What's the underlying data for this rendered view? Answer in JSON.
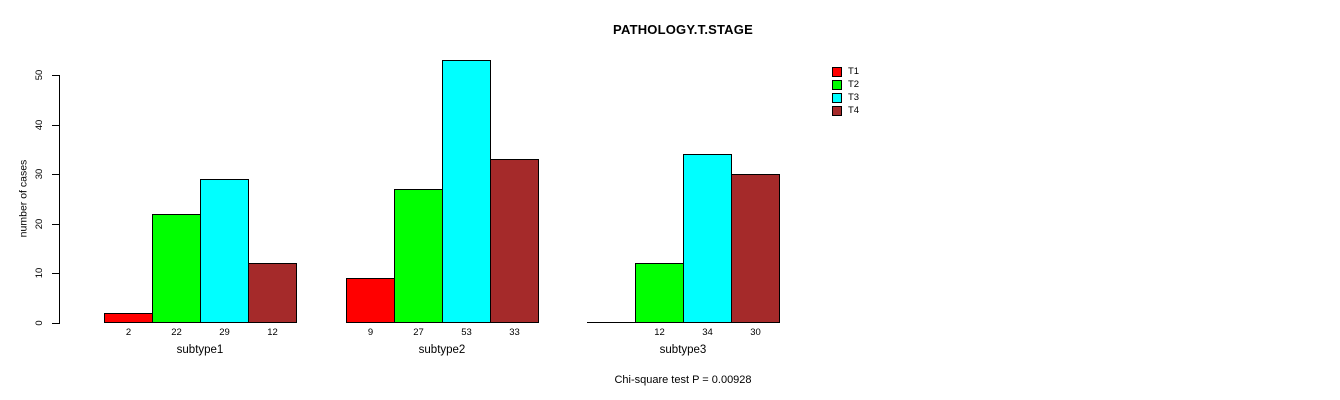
{
  "chart_data": {
    "type": "bar",
    "title": "PATHOLOGY.T.STAGE",
    "categories": [
      "subtype1",
      "subtype2",
      "subtype3"
    ],
    "series": [
      {
        "name": "T1",
        "color": "#FF0000",
        "values": [
          2,
          9,
          0
        ]
      },
      {
        "name": "T2",
        "color": "#00FF00",
        "values": [
          22,
          27,
          12
        ]
      },
      {
        "name": "T3",
        "color": "#00FFFF",
        "values": [
          29,
          53,
          34
        ]
      },
      {
        "name": "T4",
        "color": "#A52A2A",
        "values": [
          12,
          33,
          30
        ]
      }
    ],
    "bar_labels": [
      [
        "2",
        "22",
        "29",
        "12"
      ],
      [
        "9",
        "27",
        "53",
        "33"
      ],
      [
        "",
        "12",
        "34",
        "30"
      ]
    ],
    "xlabel": "",
    "ylabel": "number of cases",
    "ylim": [
      0,
      50
    ],
    "yticks": [
      0,
      10,
      20,
      30,
      40,
      50
    ],
    "grid": false,
    "legend_position": "right",
    "annotation": "Chi-square test P = 0.00928",
    "axis_color": "#000000",
    "bar_border_color": "#000000",
    "background_color": "#FFFFFF"
  }
}
